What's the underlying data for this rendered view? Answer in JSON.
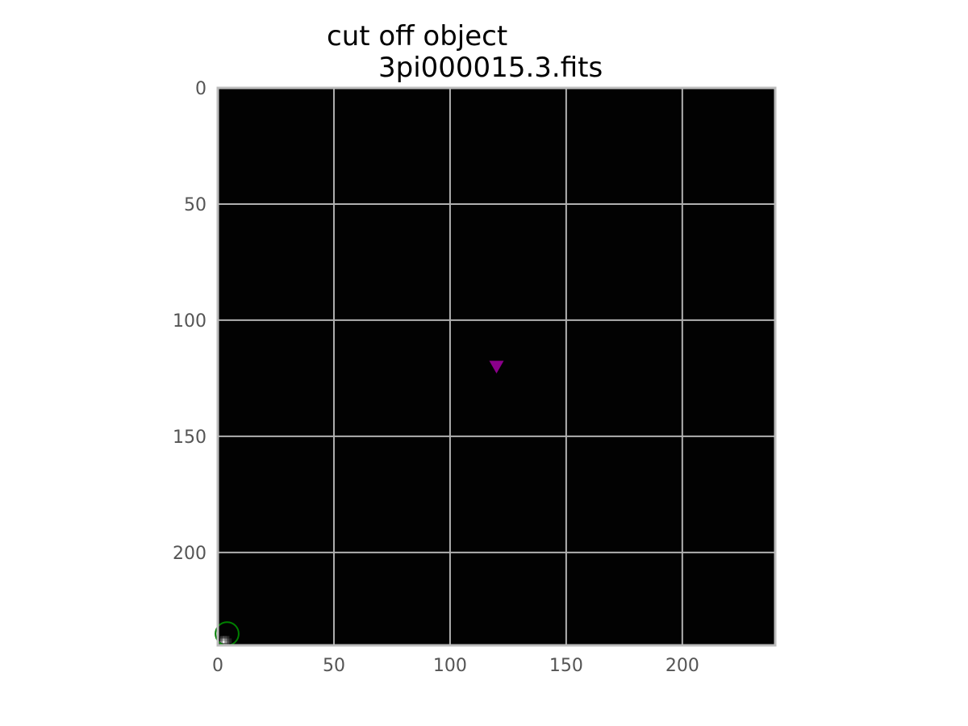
{
  "chart_data": {
    "type": "heatmap",
    "title_lines": [
      "cut off object",
      "3pi000015.3.fits"
    ],
    "xlim": [
      0,
      240
    ],
    "ylim": [
      240,
      0
    ],
    "x_ticks": [
      0,
      50,
      100,
      150,
      200
    ],
    "y_ticks": [
      0,
      50,
      100,
      150,
      200
    ],
    "grid": true,
    "colormap": "gray",
    "background_color": "#020202",
    "markers": [
      {
        "type": "triangle-down",
        "x": 120,
        "y": 120,
        "color": "#8b008b"
      },
      {
        "type": "circle",
        "x": 4,
        "y": 235,
        "radius": 5,
        "color": "#008000"
      }
    ],
    "bright_pixels": [
      {
        "x": 1,
        "y": 238,
        "value": 0.55
      },
      {
        "x": 2,
        "y": 238,
        "value": 0.95
      },
      {
        "x": 3,
        "y": 238,
        "value": 0.6
      },
      {
        "x": 4,
        "y": 238,
        "value": 0.3
      },
      {
        "x": 5,
        "y": 238,
        "value": 0.15
      },
      {
        "x": 1,
        "y": 237,
        "value": 0.4
      },
      {
        "x": 2,
        "y": 237,
        "value": 0.7
      },
      {
        "x": 3,
        "y": 237,
        "value": 0.5
      },
      {
        "x": 4,
        "y": 237,
        "value": 0.25
      },
      {
        "x": 5,
        "y": 237,
        "value": 0.12
      },
      {
        "x": 1,
        "y": 236,
        "value": 0.2
      },
      {
        "x": 2,
        "y": 236,
        "value": 0.3
      },
      {
        "x": 3,
        "y": 236,
        "value": 0.25
      },
      {
        "x": 4,
        "y": 236,
        "value": 0.15
      },
      {
        "x": 2,
        "y": 239,
        "value": 0.45
      },
      {
        "x": 3,
        "y": 239,
        "value": 0.35
      },
      {
        "x": 4,
        "y": 239,
        "value": 0.2
      }
    ]
  }
}
